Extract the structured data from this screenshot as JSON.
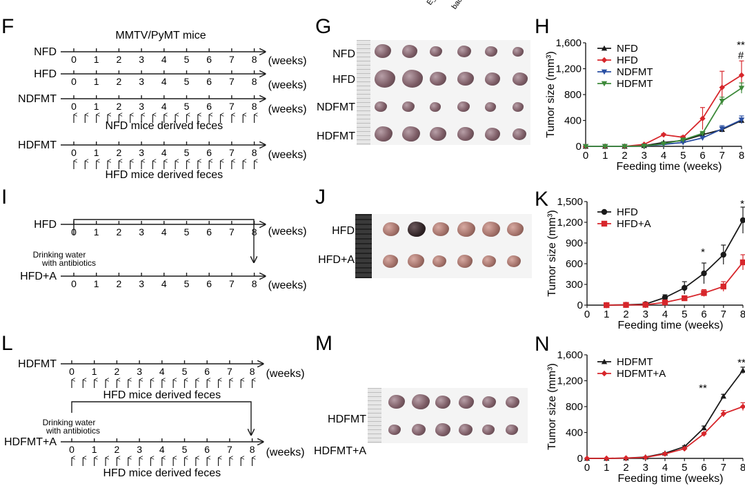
{
  "top_labels": [
    "E_",
    "bac"
  ],
  "panels": {
    "F": {
      "letter": "F",
      "title": "MMTV/PyMT mice",
      "week_unit": "(weeks)",
      "ticks": [
        "0",
        "1",
        "2",
        "3",
        "4",
        "5",
        "6",
        "7",
        "8"
      ],
      "rows": [
        {
          "label": "NFD",
          "feces_note": ""
        },
        {
          "label": "HFD",
          "feces_note": ""
        },
        {
          "label": "NDFMT",
          "feces_note": "NFD mice derived feces"
        },
        {
          "label": "HDFMT",
          "feces_note": "HFD mice derived feces"
        }
      ]
    },
    "I": {
      "letter": "I",
      "week_unit": "(weeks)",
      "ticks": [
        "0",
        "1",
        "2",
        "3",
        "4",
        "5",
        "6",
        "7",
        "8"
      ],
      "rows": [
        {
          "label": "HFD"
        },
        {
          "label": "HFD+A"
        }
      ],
      "drink_line1": "Drinking water",
      "drink_line2": "with antibiotics"
    },
    "L": {
      "letter": "L",
      "week_unit": "(weeks)",
      "ticks": [
        "0",
        "1",
        "2",
        "3",
        "4",
        "5",
        "6",
        "7",
        "8"
      ],
      "rows": [
        {
          "label": "HDFMT",
          "feces_note": "HFD mice derived feces"
        },
        {
          "label": "HDFMT+A",
          "feces_note": "HFD mice derived feces"
        }
      ],
      "drink_line1": "Drinking water",
      "drink_line2": "with antibiotics"
    },
    "G": {
      "letter": "G",
      "rows": [
        "NFD",
        "HFD",
        "NDFMT",
        "HDFMT"
      ]
    },
    "J": {
      "letter": "J",
      "rows": [
        "HFD",
        "HFD+A"
      ]
    },
    "M": {
      "letter": "M",
      "rows": [
        "HDFMT",
        "HDFMT+A"
      ]
    }
  },
  "chart_data": [
    {
      "panel": "H",
      "type": "line",
      "xlabel": "Feeding time (weeks)",
      "ylabel": "Tumor size (mm³)",
      "x": [
        0,
        1,
        2,
        3,
        4,
        5,
        6,
        7,
        8
      ],
      "xlim": [
        0,
        8
      ],
      "ylim": [
        0,
        1600
      ],
      "yticks": [
        "0",
        "400",
        "800",
        "1,200",
        "1,600"
      ],
      "legend": "top-left",
      "annotations": [
        "**",
        "#"
      ],
      "series": [
        {
          "name": "NFD",
          "marker": "triangle-up",
          "color": "#1a1a1a",
          "values": [
            0,
            0,
            0,
            10,
            60,
            90,
            180,
            260,
            400
          ],
          "err": [
            0,
            0,
            0,
            5,
            10,
            15,
            25,
            40,
            30
          ]
        },
        {
          "name": "HFD",
          "marker": "diamond",
          "color": "#d7262b",
          "values": [
            0,
            0,
            0,
            30,
            180,
            140,
            430,
            910,
            1100
          ],
          "err": [
            0,
            0,
            0,
            5,
            15,
            20,
            170,
            250,
            220
          ]
        },
        {
          "name": "NDFMT",
          "marker": "triangle-down",
          "color": "#2a4fa3",
          "values": [
            0,
            0,
            0,
            5,
            30,
            60,
            130,
            270,
            410
          ],
          "err": [
            0,
            0,
            0,
            5,
            10,
            10,
            20,
            50,
            60
          ]
        },
        {
          "name": "HDFMT",
          "marker": "triangle-down",
          "color": "#3d8a3a",
          "values": [
            0,
            0,
            0,
            5,
            40,
            100,
            200,
            700,
            900
          ],
          "err": [
            0,
            0,
            0,
            5,
            10,
            15,
            30,
            60,
            80
          ]
        }
      ]
    },
    {
      "panel": "K",
      "type": "line",
      "xlabel": "Feeding time (weeks)",
      "ylabel": "Tumor size (mm³)",
      "x": [
        1,
        2,
        3,
        4,
        5,
        6,
        7,
        8
      ],
      "xlim": [
        0,
        8
      ],
      "ylim": [
        0,
        1500
      ],
      "yticks": [
        "0",
        "300",
        "600",
        "900",
        "1,200",
        "1,500"
      ],
      "legend": "top-left",
      "annotations": [
        "*",
        "*"
      ],
      "series": [
        {
          "name": "HFD",
          "marker": "circle",
          "color": "#1a1a1a",
          "values": [
            0,
            5,
            15,
            110,
            250,
            460,
            730,
            1230
          ],
          "err": [
            0,
            3,
            8,
            40,
            90,
            150,
            140,
            190
          ]
        },
        {
          "name": "HFD+A",
          "marker": "square",
          "color": "#d7262b",
          "values": [
            0,
            3,
            5,
            40,
            100,
            175,
            270,
            620
          ],
          "err": [
            0,
            2,
            3,
            15,
            30,
            50,
            70,
            110
          ]
        }
      ]
    },
    {
      "panel": "N",
      "type": "line",
      "xlabel": "Feeding time (weeks)",
      "ylabel": "Tumor size (mm³)",
      "x": [
        0,
        1,
        2,
        3,
        4,
        5,
        6,
        7,
        8
      ],
      "xlim": [
        0,
        8
      ],
      "ylim": [
        0,
        1600
      ],
      "yticks": [
        "0",
        "400",
        "800",
        "1,200",
        "1,600"
      ],
      "legend": "top-left",
      "annotations": [
        "**",
        "**"
      ],
      "series": [
        {
          "name": "HDFMT",
          "marker": "triangle-up",
          "color": "#1a1a1a",
          "values": [
            0,
            0,
            5,
            20,
            80,
            180,
            470,
            960,
            1360
          ],
          "err": [
            0,
            0,
            2,
            5,
            10,
            15,
            30,
            30,
            50
          ]
        },
        {
          "name": "HDFMT+A",
          "marker": "diamond",
          "color": "#d7262b",
          "values": [
            0,
            0,
            5,
            15,
            70,
            150,
            380,
            690,
            800
          ],
          "err": [
            0,
            0,
            2,
            5,
            10,
            15,
            20,
            50,
            60
          ]
        }
      ]
    }
  ]
}
